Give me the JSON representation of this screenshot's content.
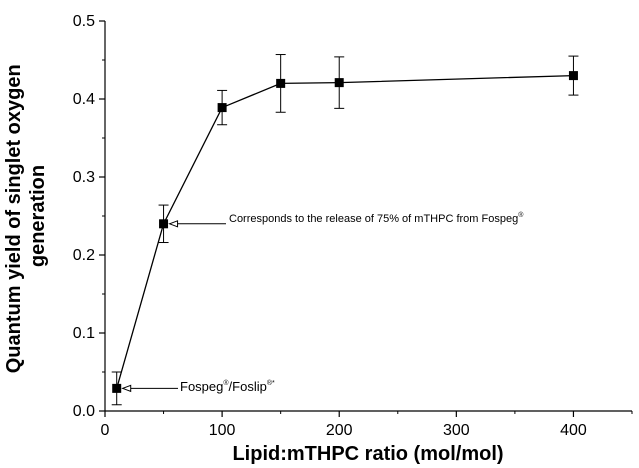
{
  "chart_data": {
    "type": "line",
    "xlabel": "Lipid:mTHPC ratio (mol/mol)",
    "ylabel_lines": [
      "Quantum yield of singlet oxygen",
      "generation"
    ],
    "xlim": [
      0,
      450
    ],
    "ylim": [
      0,
      0.5
    ],
    "xticks": [
      0,
      100,
      200,
      300,
      400
    ],
    "yticks": [
      0.0,
      0.1,
      0.2,
      0.3,
      0.4,
      0.5
    ],
    "ytick_labels": [
      "0.0",
      "0.1",
      "0.2",
      "0.3",
      "0.4",
      "0.5"
    ],
    "grid": false,
    "series": [
      {
        "marker": "square",
        "color": "#000000",
        "points": [
          {
            "x": 10,
            "y": 0.029,
            "err": 0.021
          },
          {
            "x": 50,
            "y": 0.24,
            "err": 0.024
          },
          {
            "x": 100,
            "y": 0.389,
            "err": 0.022
          },
          {
            "x": 150,
            "y": 0.42,
            "err": 0.037
          },
          {
            "x": 200,
            "y": 0.421,
            "err": 0.033
          },
          {
            "x": 400,
            "y": 0.43,
            "err": 0.025
          }
        ]
      }
    ],
    "annotations": [
      {
        "target_index": 0,
        "text": "Fospeg",
        "sup1": "®",
        "text2": "/Foslip",
        "sup2": "®*"
      },
      {
        "target_index": 1,
        "text": "Corresponds to the release of 75% of mTHPC from Fospeg",
        "sup1": "®"
      }
    ]
  }
}
